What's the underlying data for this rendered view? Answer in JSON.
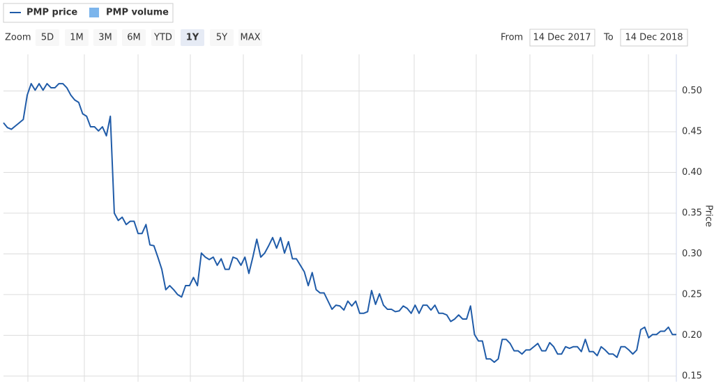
{
  "range_selector": {
    "zoom_label": "Zoom",
    "buttons": [
      "5D",
      "1M",
      "3M",
      "6M",
      "YTD",
      "1Y",
      "5Y",
      "MAX"
    ],
    "selected": 5,
    "from_label": "From",
    "from": "14 Dec 2017",
    "to_label": "To",
    "to": "14 Dec 2018"
  },
  "chart_data": {
    "type": "line",
    "y_label": "Price",
    "series": [
      {
        "name": "PMP price",
        "color": "#1f5ba8",
        "values": [
          0.461,
          0.455,
          0.453,
          0.457,
          0.461,
          0.465,
          0.495,
          0.509,
          0.501,
          0.509,
          0.501,
          0.509,
          0.504,
          0.504,
          0.509,
          0.509,
          0.504,
          0.495,
          0.489,
          0.486,
          0.472,
          0.469,
          0.456,
          0.456,
          0.451,
          0.456,
          0.445,
          0.469,
          0.35,
          0.341,
          0.345,
          0.336,
          0.34,
          0.34,
          0.325,
          0.325,
          0.336,
          0.311,
          0.31,
          0.296,
          0.281,
          0.256,
          0.261,
          0.256,
          0.25,
          0.247,
          0.261,
          0.261,
          0.271,
          0.261,
          0.301,
          0.296,
          0.293,
          0.296,
          0.286,
          0.294,
          0.281,
          0.281,
          0.296,
          0.294,
          0.286,
          0.296,
          0.276,
          0.296,
          0.318,
          0.296,
          0.301,
          0.31,
          0.32,
          0.307,
          0.32,
          0.301,
          0.315,
          0.294,
          0.294,
          0.286,
          0.278,
          0.261,
          0.277,
          0.256,
          0.252,
          0.252,
          0.242,
          0.232,
          0.237,
          0.236,
          0.231,
          0.242,
          0.236,
          0.242,
          0.227,
          0.227,
          0.229,
          0.255,
          0.238,
          0.251,
          0.237,
          0.232,
          0.232,
          0.229,
          0.23,
          0.236,
          0.233,
          0.227,
          0.237,
          0.227,
          0.237,
          0.237,
          0.231,
          0.237,
          0.227,
          0.227,
          0.225,
          0.217,
          0.22,
          0.225,
          0.22,
          0.22,
          0.236,
          0.201,
          0.193,
          0.193,
          0.171,
          0.171,
          0.167,
          0.171,
          0.195,
          0.195,
          0.19,
          0.181,
          0.181,
          0.177,
          0.182,
          0.182,
          0.186,
          0.19,
          0.181,
          0.181,
          0.191,
          0.186,
          0.177,
          0.177,
          0.186,
          0.184,
          0.186,
          0.186,
          0.18,
          0.195,
          0.18,
          0.18,
          0.175,
          0.186,
          0.182,
          0.177,
          0.177,
          0.173,
          0.186,
          0.186,
          0.182,
          0.177,
          0.182,
          0.207,
          0.21,
          0.197,
          0.201,
          0.201,
          0.205,
          0.205,
          0.21,
          0.201,
          0.201
        ]
      },
      {
        "name": "PMP volume",
        "color": "#7cb5ec"
      }
    ],
    "ylim": [
      0.143,
      0.545
    ],
    "yticks": [
      0.15,
      {
        "value": 0.2,
        "label": "0.20"
      },
      0.25,
      {
        "value": 0.3,
        "label": "0.30"
      },
      0.35,
      {
        "value": 0.4,
        "label": "0.40"
      },
      0.45,
      {
        "value": 0.5,
        "label": "0.50"
      }
    ],
    "grid": true
  }
}
